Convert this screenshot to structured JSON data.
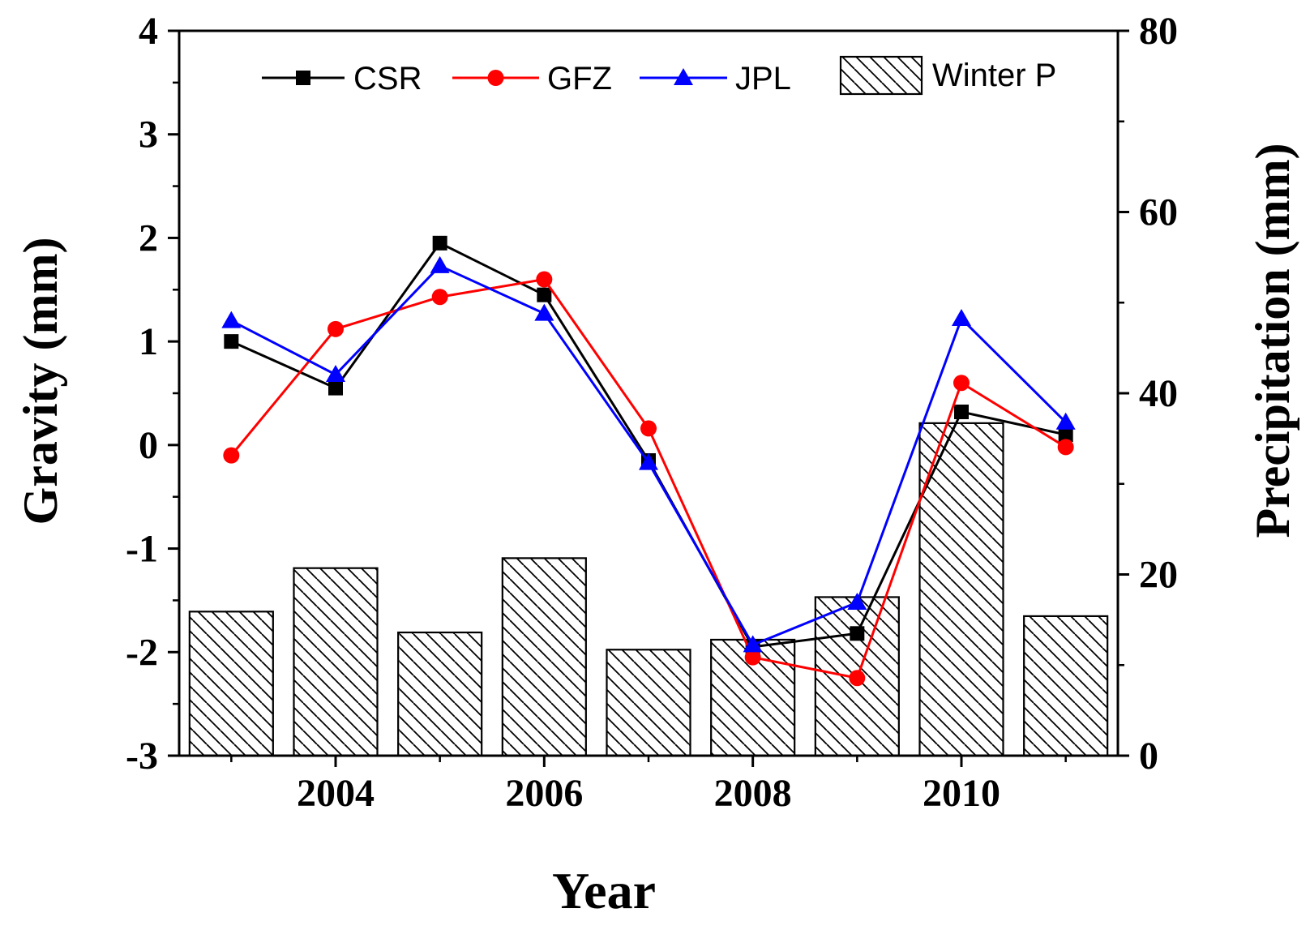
{
  "chart_data": {
    "type": "bar+line",
    "title": "",
    "xlabel": "Year",
    "ylabel_left": "Gravity (mm)",
    "ylabel_right": "Precipitation (mm)",
    "x": [
      2003,
      2004,
      2005,
      2006,
      2007,
      2008,
      2009,
      2010,
      2011
    ],
    "x_ticks": [
      2004,
      2006,
      2008,
      2010
    ],
    "x_tick_labels": [
      "2004",
      "2006",
      "2008",
      "2010"
    ],
    "x_range": [
      2002.5,
      2011.5
    ],
    "ylim_left": [
      -3,
      4
    ],
    "y_ticks_left": [
      -3,
      -2,
      -1,
      0,
      1,
      2,
      3,
      4
    ],
    "y_tick_labels_left": [
      "-3",
      "-2",
      "-1",
      "0",
      "1",
      "2",
      "3",
      "4"
    ],
    "ylim_right": [
      0,
      80
    ],
    "y_ticks_right": [
      0,
      20,
      40,
      60,
      80
    ],
    "y_tick_labels_right": [
      "0",
      "20",
      "40",
      "60",
      "80"
    ],
    "grid": false,
    "legend_position": "top",
    "bars": {
      "name": "Winter P",
      "axis": "right",
      "values": [
        15.9,
        20.7,
        13.6,
        21.8,
        11.7,
        12.8,
        17.5,
        36.7,
        15.4
      ],
      "pattern": "diagonal-hatch"
    },
    "series": [
      {
        "name": "CSR",
        "axis": "left",
        "color": "#000000",
        "marker": "square",
        "values": [
          1.0,
          0.55,
          1.95,
          1.45,
          -0.15,
          -1.95,
          -1.82,
          0.32,
          0.1
        ]
      },
      {
        "name": "GFZ",
        "axis": "left",
        "color": "#ff0000",
        "marker": "circle",
        "values": [
          -0.1,
          1.12,
          1.43,
          1.6,
          0.16,
          -2.05,
          -2.25,
          0.6,
          -0.02
        ]
      },
      {
        "name": "JPL",
        "axis": "left",
        "color": "#0000ff",
        "marker": "triangle",
        "values": [
          1.2,
          0.68,
          1.73,
          1.27,
          -0.17,
          -1.93,
          -1.52,
          1.22,
          0.22
        ]
      }
    ]
  }
}
